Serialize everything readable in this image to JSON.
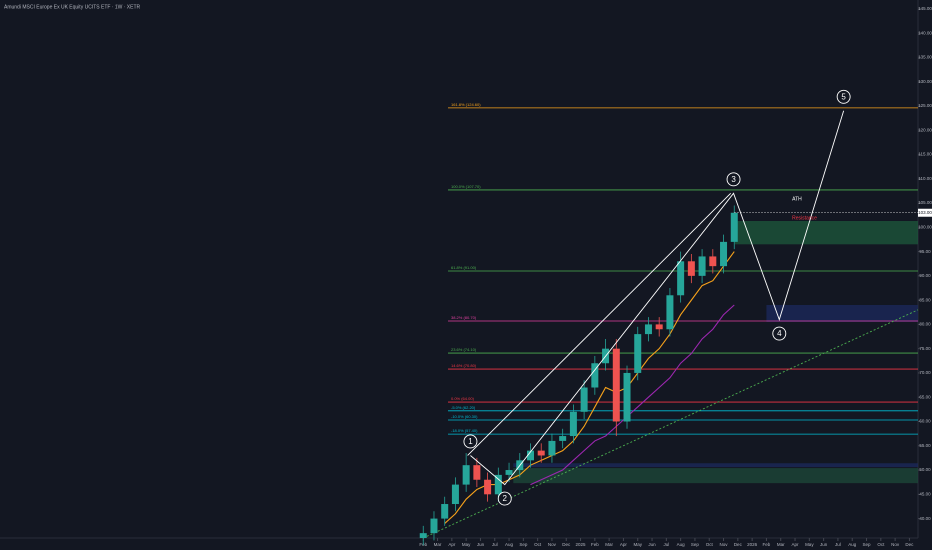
{
  "header": {
    "title": "Amundi MSCI Europe Ex UK Equity UCITS ETF · 1W · XETR"
  },
  "chart_data": {
    "type": "candlestick",
    "x": [
      0,
      0.75,
      1.5,
      2.25,
      3,
      3.75,
      4.5,
      5.25,
      6,
      6.75,
      7.5,
      8.25,
      9,
      9.75,
      10.5,
      11.25,
      12,
      12.75,
      13.5,
      14.25,
      15,
      15.75,
      16.5,
      17.25,
      18,
      18.75,
      19.5,
      20.25,
      21,
      21.75
    ],
    "open": [
      36,
      37,
      40,
      43,
      47,
      51,
      48,
      45,
      49,
      50,
      52,
      54,
      53,
      56,
      57,
      62,
      67,
      72,
      75,
      60,
      70,
      78,
      80,
      79,
      86,
      93,
      90,
      94,
      92,
      97
    ],
    "high": [
      38.5,
      41.5,
      44.5,
      48.5,
      53.5,
      52.5,
      49.5,
      50.5,
      51.5,
      53.5,
      55.5,
      55.5,
      57.5,
      58.5,
      63.5,
      68.5,
      73.5,
      77,
      77,
      71.5,
      79.5,
      81.5,
      81.5,
      87.5,
      95,
      94.5,
      95.5,
      95.5,
      98.5,
      104.5
    ],
    "low": [
      34.5,
      35.5,
      38.5,
      41.5,
      45.5,
      46.5,
      43.5,
      43.5,
      47.5,
      48.5,
      50.5,
      51.5,
      51.5,
      54.5,
      55.5,
      60.5,
      65.5,
      70.5,
      57,
      58.5,
      68.5,
      76.5,
      77.5,
      77.5,
      84.5,
      88.5,
      88.5,
      90.5,
      90.5,
      95.5
    ],
    "close": [
      37,
      40,
      43,
      47,
      51,
      48,
      45,
      49,
      50,
      52,
      54,
      53,
      56,
      57,
      62,
      67,
      72,
      75,
      60,
      70,
      78,
      80,
      79,
      86,
      93,
      90,
      94,
      92,
      97,
      103
    ],
    "up_color": "#26a69a",
    "down_color": "#ef5350",
    "xlim": [
      -29.6,
      34.6
    ],
    "ylim": [
      36,
      146
    ],
    "xticks": [
      {
        "value": 0,
        "label": "Feb"
      },
      {
        "value": 1,
        "label": "Mar"
      },
      {
        "value": 2,
        "label": "Apr"
      },
      {
        "value": 3,
        "label": "May"
      },
      {
        "value": 4,
        "label": "Jun"
      },
      {
        "value": 5,
        "label": "Jul"
      },
      {
        "value": 6,
        "label": "Aug"
      },
      {
        "value": 7,
        "label": "Sep"
      },
      {
        "value": 8,
        "label": "Oct"
      },
      {
        "value": 9,
        "label": "Nov"
      },
      {
        "value": 10,
        "label": "Dec"
      },
      {
        "value": 11,
        "label": "2025"
      },
      {
        "value": 12,
        "label": "Feb"
      },
      {
        "value": 13,
        "label": "Mar"
      },
      {
        "value": 14,
        "label": "Apr"
      },
      {
        "value": 15,
        "label": "May"
      },
      {
        "value": 16,
        "label": "Jun"
      },
      {
        "value": 17,
        "label": "Jul"
      },
      {
        "value": 18,
        "label": "Aug"
      },
      {
        "value": 19,
        "label": "Sep"
      },
      {
        "value": 20,
        "label": "Oct"
      },
      {
        "value": 21,
        "label": "Nov"
      },
      {
        "value": 22,
        "label": "Dec"
      },
      {
        "value": 23,
        "label": "2026"
      },
      {
        "value": 24,
        "label": "Feb"
      },
      {
        "value": 25,
        "label": "Mar"
      },
      {
        "value": 26,
        "label": "Apr"
      },
      {
        "value": 27,
        "label": "May"
      },
      {
        "value": 28,
        "label": "Jun"
      },
      {
        "value": 29,
        "label": "Jul"
      },
      {
        "value": 30,
        "label": "Aug"
      },
      {
        "value": 31,
        "label": "Sep"
      },
      {
        "value": 32,
        "label": "Oct"
      },
      {
        "value": 33,
        "label": "Nov"
      },
      {
        "value": 34,
        "label": "Dec"
      }
    ],
    "yticks": [
      {
        "value": 40,
        "label": "40.00"
      },
      {
        "value": 45,
        "label": "45.00"
      },
      {
        "value": 50,
        "label": "50.00"
      },
      {
        "value": 55,
        "label": "55.00"
      },
      {
        "value": 60,
        "label": "60.00"
      },
      {
        "value": 65,
        "label": "65.00"
      },
      {
        "value": 70,
        "label": "70.00"
      },
      {
        "value": 75,
        "label": "75.00"
      },
      {
        "value": 80,
        "label": "80.00"
      },
      {
        "value": 85,
        "label": "85.00"
      },
      {
        "value": 90,
        "label": "90.00"
      },
      {
        "value": 95,
        "label": "95.00"
      },
      {
        "value": 100,
        "label": "100.00"
      },
      {
        "value": 105,
        "label": "105.00"
      },
      {
        "value": 110,
        "label": "110.00"
      },
      {
        "value": 115,
        "label": "115.00"
      },
      {
        "value": 120,
        "label": "120.00"
      },
      {
        "value": 125,
        "label": "125.00"
      },
      {
        "value": 130,
        "label": "130.00"
      },
      {
        "value": 135,
        "label": "135.00"
      },
      {
        "value": 140,
        "label": "140.00"
      },
      {
        "value": 145,
        "label": "145.00"
      }
    ],
    "overlays": [
      {
        "color": "#f7a21b",
        "values": [
          null,
          null,
          39,
          41,
          44,
          46,
          47,
          47,
          48,
          49,
          51,
          52,
          53,
          54,
          56,
          59,
          63,
          67,
          66,
          67,
          70,
          73,
          75,
          78,
          82,
          85,
          88,
          89,
          92,
          95
        ]
      },
      {
        "color": "#9c27b0",
        "values": [
          null,
          null,
          null,
          null,
          null,
          null,
          null,
          null,
          null,
          null,
          47,
          48,
          49,
          50,
          52,
          54,
          56,
          57,
          59,
          61,
          63,
          65,
          67,
          69,
          72,
          74,
          77,
          79,
          82,
          84
        ]
      }
    ],
    "levels": [
      {
        "label": "161.8% (124.60)",
        "value": 124.6,
        "color": "#f7a21b"
      },
      {
        "label": "100.0% (107.70)",
        "value": 107.7,
        "color": "#4caf50"
      },
      {
        "label": "61.8% (91.00)",
        "value": 91,
        "color": "#4caf50"
      },
      {
        "label": "38.2% (80.70)",
        "value": 80.7,
        "color": "#e040a0"
      },
      {
        "label": "23.6% (74.10)",
        "value": 74.1,
        "color": "#4caf50"
      },
      {
        "label": "14.6% (70.80)",
        "value": 70.8,
        "color": "#f23645"
      },
      {
        "label": "0.0% (64.00)",
        "value": 64,
        "color": "#f23645"
      },
      {
        "label": "-5.0% (62.20)",
        "value": 62.2,
        "color": "#00bcd4"
      },
      {
        "label": "-10.0% (60.30)",
        "value": 60.3,
        "color": "#00bcd4"
      },
      {
        "label": "-18.0% (57.40)",
        "value": 57.4,
        "color": "#00bcd4"
      }
    ],
    "zones": [
      {
        "color": "#1e5a3c",
        "x": [
          21.8,
          34.6
        ],
        "range": [
          96.5,
          101.3
        ]
      },
      {
        "color": "#1c2a5e",
        "x": [
          24,
          34.6
        ],
        "range": [
          80.5,
          84
        ]
      },
      {
        "color": "#1e4a3a",
        "x": [
          6.3,
          34.6
        ],
        "range": [
          47.3,
          50.4
        ]
      },
      {
        "color": "#1c2a5e",
        "x": [
          6.3,
          34.6
        ],
        "range": [
          50.6,
          51.4
        ]
      }
    ],
    "trendlines": [
      {
        "color": "#ffffff",
        "dashed": false,
        "x": [
          3.1,
          21.5
        ],
        "values": [
          53,
          107
        ]
      },
      {
        "color": "#4caf50",
        "dashed": true,
        "x": [
          0,
          34.6
        ],
        "values": [
          36,
          83
        ]
      }
    ],
    "waves": {
      "labels": [
        "1",
        "2",
        "3",
        "4",
        "5"
      ],
      "x": [
        3.3,
        5.7,
        21.7,
        24.9,
        29.4
      ],
      "values": [
        53,
        47,
        107,
        81,
        124
      ],
      "color": "#ffffff"
    },
    "annotations": [
      {
        "text": "ATH",
        "x": 25.8,
        "value": 105.8,
        "color": "#ffffff"
      },
      {
        "text": "Resistance",
        "x": 25.8,
        "value": 101.9,
        "color": "#f23645"
      }
    ],
    "last_price": {
      "value": 103,
      "label": "103.00"
    }
  }
}
